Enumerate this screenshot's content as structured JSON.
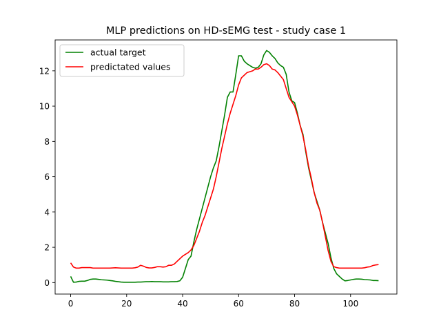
{
  "chart_data": {
    "type": "line",
    "title": "MLP predictions on HD-sEMG test - study case 1",
    "xlabel": "",
    "ylabel": "",
    "xlim": [
      -5.55,
      116.55
    ],
    "ylim": [
      -0.65,
      13.75
    ],
    "xticks": [
      0,
      20,
      40,
      60,
      80,
      100
    ],
    "yticks": [
      0,
      2,
      4,
      6,
      8,
      10,
      12
    ],
    "grid": false,
    "legend_position": "upper left",
    "series": [
      {
        "name": "actual target",
        "color": "#008000",
        "x": [
          0,
          1,
          2,
          3,
          4,
          5,
          6,
          7,
          8,
          9,
          10,
          11,
          12,
          13,
          14,
          15,
          16,
          17,
          18,
          19,
          20,
          21,
          22,
          23,
          24,
          25,
          26,
          27,
          28,
          29,
          30,
          31,
          32,
          33,
          34,
          35,
          36,
          37,
          38,
          39,
          40,
          41,
          42,
          43,
          44,
          45,
          46,
          47,
          48,
          49,
          50,
          51,
          52,
          53,
          54,
          55,
          56,
          57,
          58,
          59,
          60,
          61,
          62,
          63,
          64,
          65,
          66,
          67,
          68,
          69,
          70,
          71,
          72,
          73,
          74,
          75,
          76,
          77,
          78,
          79,
          80,
          81,
          82,
          83,
          84,
          85,
          86,
          87,
          88,
          89,
          90,
          91,
          92,
          93,
          94,
          95,
          96,
          97,
          98,
          99,
          100,
          101,
          102,
          103,
          104,
          105,
          106,
          107,
          108,
          109,
          110
        ],
        "y": [
          0.35,
          0.02,
          0.03,
          0.07,
          0.08,
          0.08,
          0.12,
          0.18,
          0.2,
          0.2,
          0.18,
          0.16,
          0.15,
          0.14,
          0.12,
          0.1,
          0.07,
          0.05,
          0.03,
          0.02,
          0.02,
          0.02,
          0.02,
          0.02,
          0.03,
          0.03,
          0.04,
          0.05,
          0.05,
          0.06,
          0.05,
          0.05,
          0.05,
          0.04,
          0.04,
          0.04,
          0.05,
          0.05,
          0.06,
          0.1,
          0.3,
          0.8,
          1.3,
          1.5,
          2.3,
          3.0,
          3.6,
          4.2,
          4.8,
          5.4,
          6.0,
          6.5,
          6.9,
          7.7,
          8.6,
          9.5,
          10.5,
          10.8,
          10.8,
          11.8,
          12.85,
          12.85,
          12.55,
          12.4,
          12.3,
          12.2,
          12.15,
          12.2,
          12.4,
          12.9,
          13.15,
          13.05,
          12.85,
          12.7,
          12.45,
          12.3,
          12.2,
          11.8,
          10.8,
          10.3,
          10.2,
          9.6,
          8.9,
          8.4,
          7.4,
          6.5,
          5.8,
          5.1,
          4.6,
          4.1,
          3.4,
          2.8,
          2.2,
          1.4,
          0.8,
          0.5,
          0.35,
          0.2,
          0.1,
          0.12,
          0.15,
          0.18,
          0.2,
          0.2,
          0.19,
          0.17,
          0.16,
          0.15,
          0.12,
          0.12,
          0.11
        ]
      },
      {
        "name": "predictated values",
        "color": "#ff0000",
        "x": [
          0,
          1,
          2,
          3,
          4,
          5,
          6,
          7,
          8,
          9,
          10,
          11,
          12,
          13,
          14,
          15,
          16,
          17,
          18,
          19,
          20,
          21,
          22,
          23,
          24,
          25,
          26,
          27,
          28,
          29,
          30,
          31,
          32,
          33,
          34,
          35,
          36,
          37,
          38,
          39,
          40,
          41,
          42,
          43,
          44,
          45,
          46,
          47,
          48,
          49,
          50,
          51,
          52,
          53,
          54,
          55,
          56,
          57,
          58,
          59,
          60,
          61,
          62,
          63,
          64,
          65,
          66,
          67,
          68,
          69,
          70,
          71,
          72,
          73,
          74,
          75,
          76,
          77,
          78,
          79,
          80,
          81,
          82,
          83,
          84,
          85,
          86,
          87,
          88,
          89,
          90,
          91,
          92,
          93,
          94,
          95,
          96,
          97,
          98,
          99,
          100,
          101,
          102,
          103,
          104,
          105,
          106,
          107,
          108,
          109,
          110
        ],
        "y": [
          1.12,
          0.88,
          0.82,
          0.82,
          0.85,
          0.85,
          0.85,
          0.85,
          0.82,
          0.82,
          0.82,
          0.82,
          0.82,
          0.82,
          0.82,
          0.83,
          0.84,
          0.83,
          0.82,
          0.82,
          0.82,
          0.82,
          0.82,
          0.84,
          0.88,
          0.98,
          0.93,
          0.86,
          0.83,
          0.83,
          0.86,
          0.9,
          0.9,
          0.88,
          0.9,
          0.98,
          0.98,
          1.05,
          1.2,
          1.35,
          1.5,
          1.6,
          1.7,
          1.85,
          2.1,
          2.5,
          2.9,
          3.4,
          3.8,
          4.3,
          4.8,
          5.3,
          6.0,
          6.8,
          7.6,
          8.3,
          9.0,
          9.6,
          10.1,
          10.6,
          11.2,
          11.6,
          11.75,
          11.9,
          11.95,
          12.0,
          12.1,
          12.1,
          12.2,
          12.35,
          12.4,
          12.3,
          12.1,
          12.05,
          11.9,
          11.7,
          11.5,
          11.0,
          10.5,
          10.25,
          10.0,
          9.5,
          8.9,
          8.3,
          7.5,
          6.6,
          5.9,
          5.1,
          4.5,
          4.1,
          3.4,
          2.6,
          1.8,
          1.2,
          0.9,
          0.85,
          0.82,
          0.82,
          0.82,
          0.82,
          0.82,
          0.82,
          0.82,
          0.82,
          0.82,
          0.84,
          0.88,
          0.9,
          0.97,
          1.0,
          1.02
        ]
      }
    ]
  }
}
